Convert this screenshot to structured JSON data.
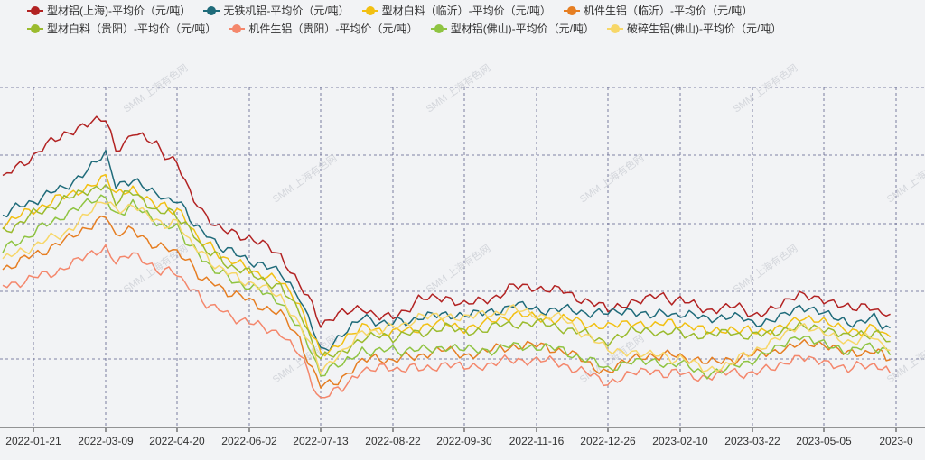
{
  "chart_data": {
    "type": "line",
    "title": "",
    "xlabel": "",
    "ylabel": "",
    "x_ticks": [
      "2022-01-21",
      "2022-03-09",
      "2022-04-20",
      "2022-06-02",
      "2022-07-13",
      "2022-08-22",
      "2022-09-30",
      "2022-11-16",
      "2022-12-26",
      "2023-02-10",
      "2023-03-22",
      "2023-05-05",
      "2023-0"
    ],
    "grid": true,
    "legend_position": "top",
    "watermark": "SMM 上海有色网",
    "y_units": "relative price level (no y-axis printed)",
    "x_samples": [
      "2022-01-01",
      "2022-01-21",
      "2022-02-10",
      "2022-03-09",
      "2022-03-15",
      "2022-03-25",
      "2022-04-08",
      "2022-04-20",
      "2022-05-05",
      "2022-05-20",
      "2022-06-02",
      "2022-06-20",
      "2022-07-01",
      "2022-07-13",
      "2022-07-25",
      "2022-08-05",
      "2022-08-22",
      "2022-09-05",
      "2022-09-20",
      "2022-09-30",
      "2022-10-15",
      "2022-11-01",
      "2022-11-16",
      "2022-12-01",
      "2022-12-26",
      "2023-01-10",
      "2023-01-25",
      "2023-02-10",
      "2023-02-25",
      "2023-03-10",
      "2023-03-22",
      "2023-04-05",
      "2023-04-20",
      "2023-05-05",
      "2023-05-20",
      "2023-06-05",
      "2023-06-15"
    ],
    "series": [
      {
        "name": "型材铝(上海)-平均价（元/吨）",
        "color": "#b22222",
        "values": [
          90,
          95,
          100,
          103,
          96,
          100,
          97,
          93,
          82,
          78,
          77,
          73,
          67,
          58,
          60,
          61,
          59,
          63,
          64,
          62,
          63,
          66,
          66,
          65,
          61,
          63,
          64,
          63,
          61,
          62,
          60,
          61,
          64,
          63,
          62,
          61,
          60
        ]
      },
      {
        "name": "无铁机铝-平均价（元/吨）",
        "color": "#1f6b7a",
        "values": [
          82,
          85,
          88,
          95,
          88,
          90,
          86,
          85,
          78,
          74,
          72,
          69,
          64,
          52,
          55,
          59,
          58,
          59,
          60,
          60,
          60,
          62,
          61,
          61,
          60,
          61,
          60,
          60,
          59,
          60,
          58,
          59,
          61,
          60,
          58,
          59,
          57
        ]
      },
      {
        "name": "型材白料（临沂）-平均价（元/吨）",
        "color": "#f2c012",
        "values": [
          80,
          83,
          86,
          90,
          86,
          88,
          84,
          83,
          76,
          72,
          70,
          67,
          62,
          51,
          54,
          57,
          56,
          57,
          58,
          57,
          58,
          60,
          59,
          59,
          57,
          58,
          58,
          58,
          56,
          57,
          56,
          57,
          59,
          58,
          56,
          57,
          55
        ]
      },
      {
        "name": "机件生铝（临沂）-平均价（元/吨）",
        "color": "#e67e22",
        "values": [
          70,
          73,
          76,
          82,
          77,
          79,
          75,
          74,
          68,
          65,
          63,
          60,
          54,
          44,
          46,
          50,
          50,
          51,
          52,
          51,
          52,
          53,
          53,
          52,
          47,
          50,
          51,
          51,
          49,
          50,
          51,
          52,
          54,
          53,
          51,
          52,
          50
        ]
      },
      {
        "name": "型材白料（贵阳）-平均价（元/吨）",
        "color": "#9bbb2e",
        "values": [
          78,
          82,
          85,
          89,
          85,
          87,
          83,
          82,
          75,
          71,
          69,
          66,
          60,
          50,
          52,
          55,
          55,
          56,
          57,
          56,
          57,
          58,
          58,
          57,
          54,
          56,
          56,
          56,
          55,
          56,
          55,
          56,
          58,
          57,
          55,
          56,
          54
        ]
      },
      {
        "name": "机件生铝（贵阳）-平均价（元/吨）",
        "color": "#f4876c",
        "values": [
          66,
          68,
          70,
          75,
          72,
          73,
          70,
          69,
          63,
          60,
          58,
          56,
          51,
          41,
          44,
          48,
          48,
          48,
          49,
          48,
          49,
          50,
          50,
          49,
          45,
          47,
          47,
          47,
          46,
          47,
          47,
          48,
          51,
          50,
          48,
          49,
          47
        ]
      },
      {
        "name": "型材铝(佛山)-平均价（元/吨）",
        "color": "#8fc442",
        "values": [
          74,
          78,
          82,
          86,
          82,
          84,
          80,
          79,
          72,
          68,
          66,
          63,
          57,
          47,
          49,
          52,
          52,
          52,
          53,
          52,
          52,
          53,
          53,
          52,
          48,
          50,
          49,
          49,
          47,
          48,
          50,
          52,
          55,
          54,
          52,
          53,
          51
        ]
      },
      {
        "name": "破碎生铝(佛山)-平均价（元/吨）",
        "color": "#f7d768",
        "values": [
          72,
          75,
          78,
          85,
          83,
          84,
          80,
          80,
          73,
          69,
          67,
          64,
          58,
          48,
          51,
          56,
          57,
          59,
          60,
          59,
          60,
          61,
          60,
          59,
          52,
          52,
          51,
          50,
          48,
          49,
          52,
          54,
          57,
          56,
          54,
          55,
          52
        ]
      }
    ]
  }
}
